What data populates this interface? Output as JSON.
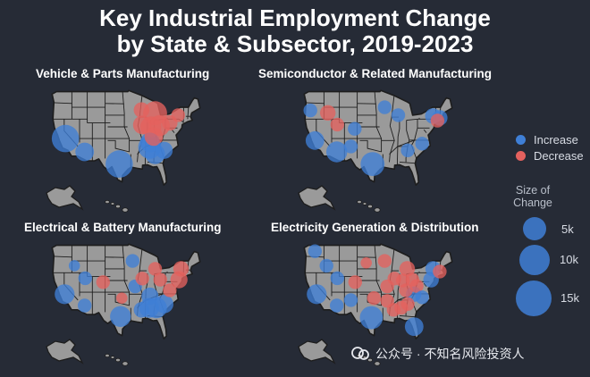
{
  "title": {
    "line1": "Key Industrial Employment Change",
    "line2": "by State & Subsector, 2019-2023"
  },
  "colors": {
    "background": "#262b36",
    "land": "#9a9a9a",
    "border": "#1d1d1d",
    "increase": "#3f7fd6",
    "decrease": "#e4615e"
  },
  "panels": [
    {
      "name": "Vehicle & Parts Manufacturing",
      "bubbles": [
        {
          "lon": -119.5,
          "lat": 37.0,
          "kind": "increase",
          "size_k": 14
        },
        {
          "lon": -112.0,
          "lat": 33.6,
          "kind": "increase",
          "size_k": 5
        },
        {
          "lon": -98.5,
          "lat": 30.5,
          "kind": "increase",
          "size_k": 14
        },
        {
          "lon": -86.6,
          "lat": 34.8,
          "kind": "increase",
          "size_k": 9
        },
        {
          "lon": -84.5,
          "lat": 33.0,
          "kind": "increase",
          "size_k": 6
        },
        {
          "lon": -81.0,
          "lat": 34.0,
          "kind": "increase",
          "size_k": 4
        },
        {
          "lon": -86.5,
          "lat": 36.0,
          "kind": "increase",
          "size_k": 6
        },
        {
          "lon": -84.5,
          "lat": 43.5,
          "kind": "decrease",
          "size_k": 10
        },
        {
          "lon": -86.2,
          "lat": 40.0,
          "kind": "decrease",
          "size_k": 7
        },
        {
          "lon": -82.8,
          "lat": 40.3,
          "kind": "decrease",
          "size_k": 7
        },
        {
          "lon": -89.5,
          "lat": 40.5,
          "kind": "decrease",
          "size_k": 5
        },
        {
          "lon": -85.0,
          "lat": 37.5,
          "kind": "decrease",
          "size_k": 5
        },
        {
          "lon": -89.8,
          "lat": 44.3,
          "kind": "decrease",
          "size_k": 3
        },
        {
          "lon": -78.8,
          "lat": 41.0,
          "kind": "decrease",
          "size_k": 3
        },
        {
          "lon": -75.5,
          "lat": 43.0,
          "kind": "decrease",
          "size_k": 2
        }
      ]
    },
    {
      "name": "Semiconductor & Related Manufacturing",
      "bubbles": [
        {
          "lon": -112.0,
          "lat": 33.6,
          "kind": "increase",
          "size_k": 7
        },
        {
          "lon": -120.5,
          "lat": 36.5,
          "kind": "increase",
          "size_k": 5
        },
        {
          "lon": -98.0,
          "lat": 30.5,
          "kind": "increase",
          "size_k": 10
        },
        {
          "lon": -115.5,
          "lat": 43.6,
          "kind": "decrease",
          "size_k": 3
        },
        {
          "lon": -122.3,
          "lat": 44.2,
          "kind": "increase",
          "size_k": 2
        },
        {
          "lon": -111.8,
          "lat": 40.6,
          "kind": "decrease",
          "size_k": 2
        },
        {
          "lon": -105.0,
          "lat": 39.5,
          "kind": "increase",
          "size_k": 2
        },
        {
          "lon": -106.5,
          "lat": 35.0,
          "kind": "increase",
          "size_k": 2
        },
        {
          "lon": -93.3,
          "lat": 45.0,
          "kind": "increase",
          "size_k": 2
        },
        {
          "lon": -74.5,
          "lat": 42.8,
          "kind": "increase",
          "size_k": 3
        },
        {
          "lon": -71.8,
          "lat": 42.3,
          "kind": "increase",
          "size_k": 3
        },
        {
          "lon": -78.7,
          "lat": 35.7,
          "kind": "increase",
          "size_k": 2
        },
        {
          "lon": -84.3,
          "lat": 34.0,
          "kind": "increase",
          "size_k": 2
        },
        {
          "lon": -88.0,
          "lat": 43.0,
          "kind": "increase",
          "size_k": 2
        },
        {
          "lon": -72.7,
          "lat": 41.6,
          "kind": "decrease",
          "size_k": 2
        }
      ]
    },
    {
      "name": "Electrical & Battery Manufacturing",
      "bubbles": [
        {
          "lon": -119.8,
          "lat": 36.5,
          "kind": "increase",
          "size_k": 6
        },
        {
          "lon": -98.0,
          "lat": 30.8,
          "kind": "increase",
          "size_k": 7
        },
        {
          "lon": -86.8,
          "lat": 33.0,
          "kind": "increase",
          "size_k": 6
        },
        {
          "lon": -84.0,
          "lat": 33.0,
          "kind": "increase",
          "size_k": 7
        },
        {
          "lon": -81.0,
          "lat": 34.0,
          "kind": "increase",
          "size_k": 5
        },
        {
          "lon": -86.5,
          "lat": 36.0,
          "kind": "increase",
          "size_k": 4
        },
        {
          "lon": -89.8,
          "lat": 32.5,
          "kind": "increase",
          "size_k": 3
        },
        {
          "lon": -75.2,
          "lat": 40.2,
          "kind": "decrease",
          "size_k": 4
        },
        {
          "lon": -74.4,
          "lat": 43.0,
          "kind": "decrease",
          "size_k": 3
        },
        {
          "lon": -84.5,
          "lat": 43.0,
          "kind": "decrease",
          "size_k": 2
        },
        {
          "lon": -82.5,
          "lat": 40.2,
          "kind": "decrease",
          "size_k": 2
        },
        {
          "lon": -111.8,
          "lat": 40.6,
          "kind": "increase",
          "size_k": 2
        },
        {
          "lon": -112.0,
          "lat": 33.6,
          "kind": "increase",
          "size_k": 2
        },
        {
          "lon": -104.8,
          "lat": 39.6,
          "kind": "decrease",
          "size_k": 2
        },
        {
          "lon": -93.3,
          "lat": 45.0,
          "kind": "increase",
          "size_k": 2
        },
        {
          "lon": -92.3,
          "lat": 38.5,
          "kind": "increase",
          "size_k": 2
        },
        {
          "lon": -97.5,
          "lat": 35.5,
          "kind": "decrease",
          "size_k": 1
        },
        {
          "lon": -89.5,
          "lat": 40.5,
          "kind": "decrease",
          "size_k": 2
        },
        {
          "lon": -78.8,
          "lat": 37.5,
          "kind": "decrease",
          "size_k": 2
        },
        {
          "lon": -116.0,
          "lat": 43.8,
          "kind": "increase",
          "size_k": 1
        }
      ]
    },
    {
      "name": "Electricity Generation & Distribution",
      "bubbles": [
        {
          "lon": -119.8,
          "lat": 36.5,
          "kind": "increase",
          "size_k": 6
        },
        {
          "lon": -98.5,
          "lat": 30.5,
          "kind": "increase",
          "size_k": 9
        },
        {
          "lon": -81.8,
          "lat": 28.2,
          "kind": "increase",
          "size_k": 5
        },
        {
          "lon": -82.0,
          "lat": 36.5,
          "kind": "increase",
          "size_k": 3
        },
        {
          "lon": -86.8,
          "lat": 33.0,
          "kind": "decrease",
          "size_k": 2
        },
        {
          "lon": -89.8,
          "lat": 32.5,
          "kind": "decrease",
          "size_k": 2
        },
        {
          "lon": -92.3,
          "lat": 34.8,
          "kind": "decrease",
          "size_k": 2
        },
        {
          "lon": -84.5,
          "lat": 43.0,
          "kind": "decrease",
          "size_k": 3
        },
        {
          "lon": -82.5,
          "lat": 40.2,
          "kind": "decrease",
          "size_k": 2
        },
        {
          "lon": -86.2,
          "lat": 40.0,
          "kind": "decrease",
          "size_k": 2
        },
        {
          "lon": -75.2,
          "lat": 40.2,
          "kind": "increase",
          "size_k": 3
        },
        {
          "lon": -74.4,
          "lat": 43.0,
          "kind": "increase",
          "size_k": 3
        },
        {
          "lon": -71.8,
          "lat": 42.3,
          "kind": "decrease",
          "size_k": 2
        },
        {
          "lon": -111.8,
          "lat": 40.6,
          "kind": "increase",
          "size_k": 2
        },
        {
          "lon": -112.0,
          "lat": 33.6,
          "kind": "increase",
          "size_k": 2
        },
        {
          "lon": -104.8,
          "lat": 39.6,
          "kind": "decrease",
          "size_k": 2
        },
        {
          "lon": -106.5,
          "lat": 35.0,
          "kind": "increase",
          "size_k": 2
        },
        {
          "lon": -97.5,
          "lat": 35.5,
          "kind": "decrease",
          "size_k": 2
        },
        {
          "lon": -93.3,
          "lat": 45.0,
          "kind": "decrease",
          "size_k": 2
        },
        {
          "lon": -92.3,
          "lat": 38.5,
          "kind": "decrease",
          "size_k": 2
        },
        {
          "lon": -89.5,
          "lat": 40.5,
          "kind": "decrease",
          "size_k": 2
        },
        {
          "lon": -116.0,
          "lat": 43.8,
          "kind": "increase",
          "size_k": 2
        },
        {
          "lon": -120.5,
          "lat": 47.5,
          "kind": "increase",
          "size_k": 2
        },
        {
          "lon": -100.5,
          "lat": 44.5,
          "kind": "decrease",
          "size_k": 1
        },
        {
          "lon": -85.0,
          "lat": 37.5,
          "kind": "decrease",
          "size_k": 2
        },
        {
          "lon": -80.8,
          "lat": 38.6,
          "kind": "decrease",
          "size_k": 2
        },
        {
          "lon": -78.7,
          "lat": 35.7,
          "kind": "increase",
          "size_k": 2
        },
        {
          "lon": -84.3,
          "lat": 34.0,
          "kind": "decrease",
          "size_k": 2
        }
      ]
    }
  ],
  "legend": {
    "increase_label": "Increase",
    "decrease_label": "Decrease",
    "size_title_line1": "Size of",
    "size_title_line2": "Change",
    "sizes": [
      {
        "label": "5k",
        "value_k": 5
      },
      {
        "label": "10k",
        "value_k": 10
      },
      {
        "label": "15k",
        "value_k": 15
      }
    ]
  },
  "watermark": {
    "text": "公众号 · 不知名风险投资人",
    "icon": "wechat-official-account-icon"
  }
}
